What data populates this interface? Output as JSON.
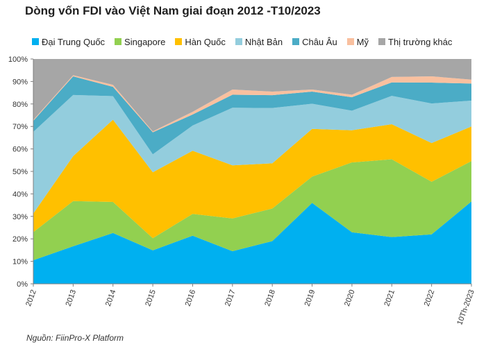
{
  "chart_data": {
    "type": "area",
    "stacked": true,
    "normalized": true,
    "title": "Dòng vốn FDI vào Việt Nam giai đoạn 2012 -T10/2023",
    "categories": [
      "2012",
      "2013",
      "2014",
      "2015",
      "2016",
      "2017",
      "2018",
      "2019",
      "2020",
      "2021",
      "2022",
      "10Th-2023"
    ],
    "yticks": [
      "0%",
      "10%",
      "20%",
      "30%",
      "40%",
      "50%",
      "60%",
      "70%",
      "80%",
      "90%",
      "100%"
    ],
    "ylim": [
      0,
      100
    ],
    "grid": false,
    "legend_position": "top",
    "series": [
      {
        "name": "Đại Trung Quốc",
        "color": "#00B0F0",
        "values": [
          10.5,
          16.7,
          22.6,
          14.9,
          21.4,
          14.5,
          19.0,
          36.0,
          22.9,
          20.8,
          22.0,
          36.6
        ]
      },
      {
        "name": "Singapore",
        "color": "#92D050",
        "values": [
          12.5,
          20.1,
          13.8,
          5.4,
          9.7,
          14.6,
          14.5,
          11.7,
          31.1,
          34.6,
          23.4,
          18.0
        ]
      },
      {
        "name": "Hàn Quốc",
        "color": "#FFC000",
        "values": [
          8.3,
          20.0,
          36.6,
          29.3,
          28.1,
          23.6,
          20.1,
          21.2,
          14.3,
          15.6,
          17.2,
          15.4
        ]
      },
      {
        "name": "Nhật Bản",
        "color": "#93CDDD",
        "values": [
          36.3,
          27.2,
          10.5,
          8.0,
          11.2,
          25.6,
          24.6,
          11.2,
          8.7,
          12.6,
          17.6,
          11.5
        ]
      },
      {
        "name": "Châu Âu",
        "color": "#4BACC6",
        "values": [
          4.9,
          8.3,
          4.1,
          9.8,
          4.9,
          5.8,
          5.7,
          5.4,
          6.0,
          6.0,
          9.3,
          7.6
        ]
      },
      {
        "name": "Mỹ",
        "color": "#F9C09F",
        "values": [
          0.4,
          0.5,
          0.9,
          0.4,
          1.2,
          2.3,
          1.6,
          0.9,
          1.1,
          2.4,
          2.8,
          1.7
        ]
      },
      {
        "name": "Thị trường khác",
        "color": "#A6A6A6",
        "values": [
          27.1,
          7.2,
          11.5,
          32.2,
          23.5,
          13.6,
          14.5,
          13.6,
          15.9,
          8.0,
          7.7,
          9.2
        ]
      }
    ]
  },
  "source_note": "Nguồn: FiinPro-X Platform"
}
